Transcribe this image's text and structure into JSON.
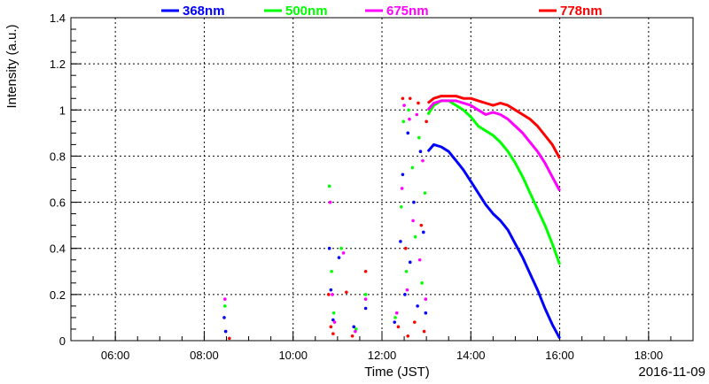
{
  "chart_data": {
    "type": "scatter",
    "title": "",
    "xlabel": "Time (JST)",
    "ylabel": "Intensity (a.u.)",
    "date_label": "2016-11-09",
    "xlim": [
      "05:00",
      "19:00"
    ],
    "ylim": [
      0,
      1.4
    ],
    "x_ticks": [
      "06:00",
      "08:00",
      "10:00",
      "12:00",
      "14:00",
      "16:00",
      "18:00"
    ],
    "y_ticks": [
      "0",
      "0.2",
      "0.4",
      "0.6",
      "0.8",
      "1",
      "1.2",
      "1.4"
    ],
    "grid": true,
    "legend_position": "top",
    "series": [
      {
        "name": "368nm",
        "color": "#0000ff",
        "curve": [
          [
            "13:02",
            0.82
          ],
          [
            "13:10",
            0.85
          ],
          [
            "13:20",
            0.84
          ],
          [
            "13:30",
            0.82
          ],
          [
            "13:40",
            0.78
          ],
          [
            "13:50",
            0.74
          ],
          [
            "14:00",
            0.69
          ],
          [
            "14:10",
            0.64
          ],
          [
            "14:20",
            0.59
          ],
          [
            "14:30",
            0.55
          ],
          [
            "14:40",
            0.52
          ],
          [
            "14:50",
            0.48
          ],
          [
            "15:00",
            0.42
          ],
          [
            "15:10",
            0.36
          ],
          [
            "15:20",
            0.29
          ],
          [
            "15:30",
            0.22
          ],
          [
            "15:40",
            0.14
          ],
          [
            "15:50",
            0.07
          ],
          [
            "16:00",
            0.01
          ]
        ],
        "scatter": [
          [
            "08:27",
            0.1
          ],
          [
            "08:29",
            0.04
          ],
          [
            "10:49",
            0.4
          ],
          [
            "10:51",
            0.22
          ],
          [
            "10:54",
            0.09
          ],
          [
            "11:02",
            0.36
          ],
          [
            "11:22",
            0.06
          ],
          [
            "11:38",
            0.14
          ],
          [
            "12:17",
            0.08
          ],
          [
            "12:25",
            0.43
          ],
          [
            "12:28",
            0.72
          ],
          [
            "12:31",
            0.2
          ],
          [
            "12:35",
            0.9
          ],
          [
            "12:38",
            0.34
          ],
          [
            "12:43",
            0.6
          ],
          [
            "12:48",
            0.15
          ],
          [
            "12:52",
            0.82
          ],
          [
            "12:56",
            0.47
          ],
          [
            "12:59",
            0.12
          ]
        ]
      },
      {
        "name": "500nm",
        "color": "#00ff00",
        "curve": [
          [
            "13:02",
            0.98
          ],
          [
            "13:10",
            1.02
          ],
          [
            "13:20",
            1.04
          ],
          [
            "13:30",
            1.04
          ],
          [
            "13:40",
            1.02
          ],
          [
            "13:50",
            1.0
          ],
          [
            "14:00",
            0.97
          ],
          [
            "14:10",
            0.93
          ],
          [
            "14:20",
            0.91
          ],
          [
            "14:30",
            0.89
          ],
          [
            "14:40",
            0.86
          ],
          [
            "14:50",
            0.82
          ],
          [
            "15:00",
            0.77
          ],
          [
            "15:10",
            0.71
          ],
          [
            "15:20",
            0.64
          ],
          [
            "15:30",
            0.57
          ],
          [
            "15:40",
            0.5
          ],
          [
            "15:50",
            0.42
          ],
          [
            "16:00",
            0.33
          ]
        ],
        "scatter": [
          [
            "08:28",
            0.15
          ],
          [
            "10:49",
            0.67
          ],
          [
            "10:52",
            0.3
          ],
          [
            "10:55",
            0.12
          ],
          [
            "11:05",
            0.4
          ],
          [
            "11:25",
            0.05
          ],
          [
            "11:38",
            0.2
          ],
          [
            "12:18",
            0.1
          ],
          [
            "12:26",
            0.58
          ],
          [
            "12:29",
            0.95
          ],
          [
            "12:33",
            0.3
          ],
          [
            "12:36",
            1.0
          ],
          [
            "12:41",
            0.75
          ],
          [
            "12:45",
            0.45
          ],
          [
            "12:50",
            0.88
          ],
          [
            "12:54",
            0.25
          ],
          [
            "12:58",
            0.64
          ]
        ]
      },
      {
        "name": "675nm",
        "color": "#ff00ff",
        "curve": [
          [
            "13:02",
            1.0
          ],
          [
            "13:10",
            1.03
          ],
          [
            "13:20",
            1.04
          ],
          [
            "13:30",
            1.04
          ],
          [
            "13:40",
            1.04
          ],
          [
            "13:50",
            1.03
          ],
          [
            "14:00",
            1.02
          ],
          [
            "14:10",
            1.0
          ],
          [
            "14:20",
            0.98
          ],
          [
            "14:30",
            0.99
          ],
          [
            "14:40",
            0.98
          ],
          [
            "14:50",
            0.96
          ],
          [
            "15:00",
            0.93
          ],
          [
            "15:10",
            0.9
          ],
          [
            "15:20",
            0.86
          ],
          [
            "15:30",
            0.82
          ],
          [
            "15:40",
            0.77
          ],
          [
            "15:50",
            0.71
          ],
          [
            "16:00",
            0.65
          ]
        ],
        "scatter": [
          [
            "08:28",
            0.18
          ],
          [
            "10:50",
            0.6
          ],
          [
            "10:53",
            0.2
          ],
          [
            "10:56",
            0.08
          ],
          [
            "11:08",
            0.38
          ],
          [
            "11:24",
            0.04
          ],
          [
            "11:38",
            0.18
          ],
          [
            "12:20",
            0.12
          ],
          [
            "12:27",
            0.66
          ],
          [
            "12:30",
            1.02
          ],
          [
            "12:34",
            0.22
          ],
          [
            "12:37",
            0.96
          ],
          [
            "12:42",
            0.52
          ],
          [
            "12:47",
            0.98
          ],
          [
            "12:51",
            0.35
          ],
          [
            "12:55",
            0.78
          ],
          [
            "12:59",
            0.18
          ]
        ]
      },
      {
        "name": "778nm",
        "color": "#ff0000",
        "curve": [
          [
            "13:02",
            1.03
          ],
          [
            "13:10",
            1.05
          ],
          [
            "13:20",
            1.06
          ],
          [
            "13:30",
            1.06
          ],
          [
            "13:40",
            1.06
          ],
          [
            "13:50",
            1.05
          ],
          [
            "14:00",
            1.05
          ],
          [
            "14:10",
            1.04
          ],
          [
            "14:20",
            1.03
          ],
          [
            "14:30",
            1.02
          ],
          [
            "14:40",
            1.03
          ],
          [
            "14:50",
            1.02
          ],
          [
            "15:00",
            1.0
          ],
          [
            "15:10",
            0.98
          ],
          [
            "15:20",
            0.96
          ],
          [
            "15:30",
            0.93
          ],
          [
            "15:40",
            0.89
          ],
          [
            "15:50",
            0.85
          ],
          [
            "16:00",
            0.79
          ]
        ],
        "scatter": [
          [
            "08:34",
            0.01
          ],
          [
            "10:48",
            0.2
          ],
          [
            "10:51",
            0.06
          ],
          [
            "10:54",
            0.03
          ],
          [
            "11:12",
            0.21
          ],
          [
            "11:20",
            0.02
          ],
          [
            "11:38",
            0.3
          ],
          [
            "12:22",
            0.06
          ],
          [
            "12:28",
            1.05
          ],
          [
            "12:32",
            0.4
          ],
          [
            "12:35",
            0.02
          ],
          [
            "12:38",
            1.05
          ],
          [
            "12:44",
            0.08
          ],
          [
            "12:49",
            1.03
          ],
          [
            "12:53",
            0.5
          ],
          [
            "12:57",
            0.04
          ],
          [
            "13:00",
            0.95
          ]
        ]
      }
    ]
  }
}
